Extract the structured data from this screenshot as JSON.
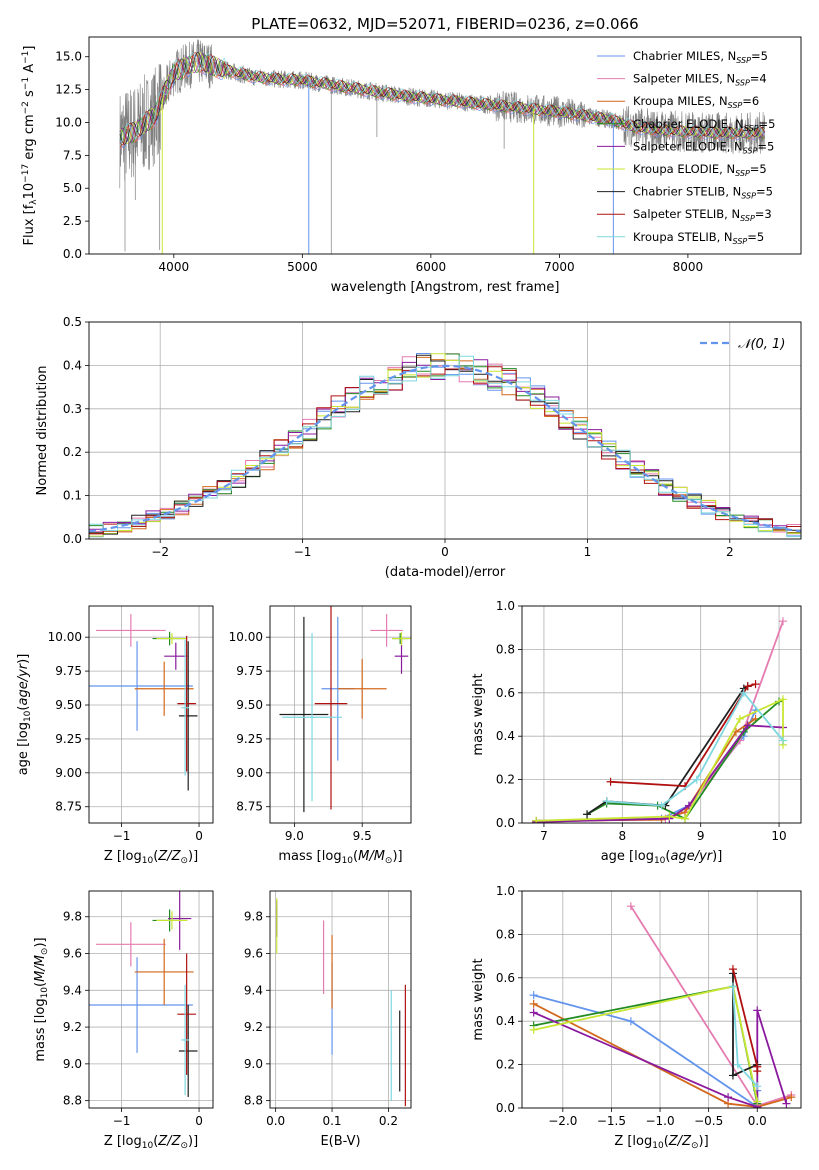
{
  "title": "PLATE=0632, MJD=52071, FIBERID=0236, z=0.066",
  "colors": {
    "palette": [
      "#6495ed",
      "#e57bb0",
      "#d2691e",
      "#228b22",
      "#8b1a9e",
      "#c8e632",
      "#202020",
      "#b01010",
      "#7fd8e0"
    ],
    "spectrum_data": "#7f7f7f",
    "gaussian": "#6495ed",
    "grid": "#b0b0b0"
  },
  "chart_data": [
    {
      "id": "spectrum",
      "type": "line",
      "xlabel": "wavelength [Angstrom, rest frame]",
      "ylabel": "Flux [f_λ 10^-17 erg cm^-2 s^-1 A^-1]",
      "xlim": [
        3340,
        8880
      ],
      "ylim": [
        0,
        16.5
      ],
      "xticks": [
        4000,
        5000,
        6000,
        7000,
        8000
      ],
      "yticks": [
        0.0,
        2.5,
        5.0,
        7.5,
        10.0,
        12.5,
        15.0
      ],
      "grid": false,
      "legend_position": "top-right",
      "continuum_knots": {
        "wavelength": [
          3580,
          3700,
          3850,
          3920,
          4000,
          4050,
          4100,
          4200,
          4400,
          4600,
          4800,
          5000,
          5200,
          5400,
          5600,
          5800,
          6000,
          6200,
          6400,
          6600,
          6800,
          7000,
          7200,
          7400,
          7600,
          7800,
          8000,
          8200,
          8400,
          8600
        ],
        "flux": [
          8.8,
          9.3,
          10.5,
          12.0,
          13.8,
          14.0,
          14.3,
          14.6,
          14.0,
          13.5,
          13.3,
          13.2,
          12.9,
          12.6,
          12.3,
          12.0,
          11.8,
          11.6,
          11.4,
          11.2,
          11.0,
          10.8,
          10.5,
          10.2,
          9.6,
          9.4,
          9.3,
          9.2,
          9.2,
          9.2
        ]
      },
      "series": [
        {
          "name": "Chabrier MILES, N_SSP=5"
        },
        {
          "name": "Salpeter MILES, N_SSP=4"
        },
        {
          "name": "Kroupa MILES, N_SSP=6"
        },
        {
          "name": "Chabrier ELODIE, N_SSP=5"
        },
        {
          "name": "Salpeter ELODIE, N_SSP=5"
        },
        {
          "name": "Kroupa ELODIE, N_SSP=5"
        },
        {
          "name": "Chabrier STELIB, N_SSP=5"
        },
        {
          "name": "Salpeter STELIB, N_SSP=3"
        },
        {
          "name": "Kroupa STELIB, N_SSP=5"
        }
      ]
    },
    {
      "id": "residuals",
      "type": "line",
      "xlabel": "(data-model)/error",
      "ylabel": "Normed distribution",
      "xlim": [
        -2.5,
        2.5
      ],
      "ylim": [
        0,
        0.5
      ],
      "xticks": [
        -2,
        -1,
        0,
        1,
        2
      ],
      "yticks": [
        0.0,
        0.1,
        0.2,
        0.3,
        0.4,
        0.5
      ],
      "grid": true,
      "legend": [
        "𝒩(0, 1)"
      ],
      "legend_position": "top-right",
      "histogram_bin_width": 0.1
    },
    {
      "id": "age-vs-z",
      "type": "scatter",
      "xlabel": "Z [log10(Z/Z⊙)]",
      "ylabel": "age  [log10(age/yr)]",
      "xlim": [
        -1.42,
        0.18
      ],
      "ylim": [
        8.63,
        10.23
      ],
      "xticks": [
        -1,
        0
      ],
      "yticks": [
        8.75,
        9.0,
        9.25,
        9.5,
        9.75,
        10.0
      ],
      "grid": true,
      "points": [
        {
          "series": 0,
          "x": -0.8,
          "y": 9.64,
          "xerr": 0.72,
          "yerr": 0.33
        },
        {
          "series": 1,
          "x": -0.88,
          "y": 10.05,
          "xerr": 0.45,
          "yerr": 0.12
        },
        {
          "series": 2,
          "x": -0.45,
          "y": 9.62,
          "xerr": 0.38,
          "yerr": 0.2
        },
        {
          "series": 3,
          "x": -0.38,
          "y": 9.99,
          "xerr": 0.22,
          "yerr": 0.05
        },
        {
          "series": 4,
          "x": -0.3,
          "y": 9.86,
          "xerr": 0.15,
          "yerr": 0.1
        },
        {
          "series": 5,
          "x": -0.35,
          "y": 9.99,
          "xerr": 0.2,
          "yerr": 0.04
        },
        {
          "series": 6,
          "x": -0.14,
          "y": 9.42,
          "xerr": 0.12,
          "yerr": 0.55
        },
        {
          "series": 7,
          "x": -0.16,
          "y": 9.51,
          "xerr": 0.12,
          "yerr": 0.5
        },
        {
          "series": 8,
          "x": -0.18,
          "y": 9.48,
          "xerr": 0.05,
          "yerr": 0.5
        }
      ]
    },
    {
      "id": "age-vs-mass",
      "type": "scatter",
      "xlabel": "mass [log10(M/M⊙)]",
      "ylabel": "",
      "xlim": [
        8.82,
        9.86
      ],
      "ylim": [
        8.63,
        10.23
      ],
      "xticks": [
        9.0,
        9.5
      ],
      "yticks": [
        8.75,
        9.0,
        9.25,
        9.5,
        9.75,
        10.0
      ],
      "grid": true,
      "points": [
        {
          "series": 0,
          "x": 9.32,
          "y": 9.62,
          "xerr": 0.12,
          "yerr": 0.53
        },
        {
          "series": 1,
          "x": 9.68,
          "y": 10.05,
          "xerr": 0.12,
          "yerr": 0.12
        },
        {
          "series": 2,
          "x": 9.5,
          "y": 9.62,
          "xerr": 0.18,
          "yerr": 0.22
        },
        {
          "series": 3,
          "x": 9.78,
          "y": 9.99,
          "xerr": 0.06,
          "yerr": 0.04
        },
        {
          "series": 4,
          "x": 9.79,
          "y": 9.86,
          "xerr": 0.05,
          "yerr": 0.13
        },
        {
          "series": 5,
          "x": 9.79,
          "y": 9.99,
          "xerr": 0.07,
          "yerr": 0.05
        },
        {
          "series": 6,
          "x": 9.07,
          "y": 9.43,
          "xerr": 0.18,
          "yerr": 0.72
        },
        {
          "series": 7,
          "x": 9.27,
          "y": 9.51,
          "xerr": 0.12,
          "yerr": 0.78
        },
        {
          "series": 8,
          "x": 9.13,
          "y": 9.41,
          "xerr": 0.22,
          "yerr": 0.62
        }
      ]
    },
    {
      "id": "weight-vs-age",
      "type": "line",
      "xlabel": "age  [log10(age/yr)]",
      "ylabel": "mass weight",
      "xlim": [
        6.72,
        10.28
      ],
      "ylim": [
        0,
        1.0
      ],
      "xticks": [
        7,
        8,
        9,
        10
      ],
      "yticks": [
        0.0,
        0.2,
        0.4,
        0.6,
        0.8,
        1.0
      ],
      "grid": true,
      "series": [
        {
          "series": 0,
          "x": [
            6.9,
            8.5,
            8.85,
            9.55,
            9.7
          ],
          "y": [
            0.01,
            0.02,
            0.08,
            0.4,
            0.52
          ]
        },
        {
          "series": 1,
          "x": [
            6.9,
            8.55,
            8.8,
            9.5,
            10.05
          ],
          "y": [
            0.005,
            0.02,
            0.05,
            0.38,
            0.93
          ]
        },
        {
          "series": 2,
          "x": [
            6.9,
            8.5,
            8.8,
            9.45,
            9.7
          ],
          "y": [
            0.01,
            0.015,
            0.05,
            0.42,
            0.48
          ]
        },
        {
          "series": 3,
          "x": [
            7.55,
            7.8,
            8.45,
            8.8,
            9.55,
            10.0
          ],
          "y": [
            0.04,
            0.09,
            0.08,
            0.02,
            0.42,
            0.56
          ]
        },
        {
          "series": 4,
          "x": [
            6.9,
            8.6,
            8.85,
            9.6,
            10.05
          ],
          "y": [
            0.005,
            0.02,
            0.08,
            0.45,
            0.44
          ]
        },
        {
          "series": 5,
          "x": [
            6.9,
            8.6,
            8.8,
            9.5,
            10.05,
            10.05
          ],
          "y": [
            0.01,
            0.03,
            0.02,
            0.48,
            0.57,
            0.36
          ]
        },
        {
          "series": 6,
          "x": [
            7.55,
            7.8,
            8.55,
            9.55,
            9.6
          ],
          "y": [
            0.04,
            0.1,
            0.08,
            0.62,
            0.63
          ]
        },
        {
          "series": 7,
          "x": [
            7.85,
            8.8,
            9.6,
            9.7
          ],
          "y": [
            0.19,
            0.17,
            0.63,
            0.64
          ]
        },
        {
          "series": 8,
          "x": [
            7.8,
            8.5,
            8.95,
            9.55,
            10.05
          ],
          "y": [
            0.1,
            0.08,
            0.2,
            0.6,
            0.38
          ]
        }
      ]
    },
    {
      "id": "mass-vs-z",
      "type": "scatter",
      "xlabel": "Z [log10(Z/Z⊙)]",
      "ylabel": "mass [log10(M/M⊙)]",
      "xlim": [
        -1.42,
        0.18
      ],
      "ylim": [
        8.76,
        9.94
      ],
      "xticks": [
        -1,
        0
      ],
      "yticks": [
        8.8,
        9.0,
        9.2,
        9.4,
        9.6,
        9.8
      ],
      "grid": true,
      "points": [
        {
          "series": 0,
          "x": -0.8,
          "y": 9.32,
          "xerr": 0.72,
          "yerr": 0.26
        },
        {
          "series": 1,
          "x": -0.88,
          "y": 9.65,
          "xerr": 0.45,
          "yerr": 0.12
        },
        {
          "series": 2,
          "x": -0.45,
          "y": 9.5,
          "xerr": 0.38,
          "yerr": 0.18
        },
        {
          "series": 3,
          "x": -0.38,
          "y": 9.78,
          "xerr": 0.22,
          "yerr": 0.06
        },
        {
          "series": 4,
          "x": -0.25,
          "y": 9.79,
          "xerr": 0.15,
          "yerr": 0.17
        },
        {
          "series": 5,
          "x": -0.35,
          "y": 9.78,
          "xerr": 0.2,
          "yerr": 0.05
        },
        {
          "series": 6,
          "x": -0.14,
          "y": 9.07,
          "xerr": 0.12,
          "yerr": 0.25
        },
        {
          "series": 7,
          "x": -0.16,
          "y": 9.27,
          "xerr": 0.12,
          "yerr": 0.33
        },
        {
          "series": 8,
          "x": -0.18,
          "y": 9.13,
          "xerr": 0.05,
          "yerr": 0.3
        }
      ]
    },
    {
      "id": "mass-vs-ebv",
      "type": "scatter",
      "xlabel": "E(B-V)",
      "ylabel": "",
      "xlim": [
        -0.01,
        0.24
      ],
      "ylim": [
        8.76,
        9.94
      ],
      "xticks": [
        0.0,
        0.1,
        0.2
      ],
      "yticks": [
        8.8,
        9.0,
        9.2,
        9.4,
        9.6,
        9.8
      ],
      "grid": true,
      "points": [
        {
          "series": 0,
          "x": 0.1,
          "y": 9.3,
          "xerr": 0,
          "yerr": 0.25
        },
        {
          "series": 1,
          "x": 0.085,
          "y": 9.58,
          "xerr": 0,
          "yerr": 0.2
        },
        {
          "series": 2,
          "x": 0.1,
          "y": 9.5,
          "xerr": 0,
          "yerr": 0.2
        },
        {
          "series": 3,
          "x": 0.002,
          "y": 9.78,
          "xerr": 0,
          "yerr": 0.08
        },
        {
          "series": 4,
          "x": 0.002,
          "y": 9.79,
          "xerr": 0,
          "yerr": 0.1
        },
        {
          "series": 5,
          "x": 0.002,
          "y": 9.75,
          "xerr": 0,
          "yerr": 0.15
        },
        {
          "series": 6,
          "x": 0.22,
          "y": 9.07,
          "xerr": 0,
          "yerr": 0.22
        },
        {
          "series": 7,
          "x": 0.23,
          "y": 9.1,
          "xerr": 0,
          "yerr": 0.33
        },
        {
          "series": 8,
          "x": 0.205,
          "y": 9.1,
          "xerr": 0,
          "yerr": 0.3
        }
      ]
    },
    {
      "id": "weight-vs-z",
      "type": "line",
      "xlabel": "Z [log10(Z/Z⊙)]",
      "ylabel": "mass weight",
      "xlim": [
        -2.42,
        0.45
      ],
      "ylim": [
        0,
        1.0
      ],
      "xticks": [
        -2.0,
        -1.5,
        -1.0,
        -0.5,
        0.0
      ],
      "yticks": [
        0.0,
        0.2,
        0.4,
        0.6,
        0.8,
        1.0
      ],
      "grid": true,
      "series": [
        {
          "series": 0,
          "x": [
            -2.3,
            -1.3,
            0.0,
            0.0
          ],
          "y": [
            0.52,
            0.4,
            0.005,
            0.08
          ]
        },
        {
          "series": 1,
          "x": [
            -1.3,
            0.0,
            0.35
          ],
          "y": [
            0.93,
            0.01,
            0.06
          ]
        },
        {
          "series": 2,
          "x": [
            -2.3,
            -0.3,
            0.0,
            0.35
          ],
          "y": [
            0.48,
            0.02,
            0.005,
            0.05
          ]
        },
        {
          "series": 3,
          "x": [
            -2.3,
            -0.25,
            0.0
          ],
          "y": [
            0.38,
            0.56,
            0.02
          ]
        },
        {
          "series": 4,
          "x": [
            -2.3,
            -0.3,
            0.0,
            0.0,
            0.3
          ],
          "y": [
            0.44,
            0.05,
            0.005,
            0.45,
            0.02
          ]
        },
        {
          "series": 5,
          "x": [
            -2.3,
            -0.25,
            0.0
          ],
          "y": [
            0.36,
            0.56,
            0.03
          ]
        },
        {
          "series": 6,
          "x": [
            -0.25,
            -0.25,
            0.0
          ],
          "y": [
            0.62,
            0.15,
            0.2
          ]
        },
        {
          "series": 7,
          "x": [
            -0.25,
            0.0,
            0.0
          ],
          "y": [
            0.64,
            0.19,
            0.17
          ]
        },
        {
          "series": 8,
          "x": [
            -0.25,
            -0.2,
            0.0
          ],
          "y": [
            0.56,
            0.2,
            0.1
          ]
        }
      ]
    }
  ]
}
